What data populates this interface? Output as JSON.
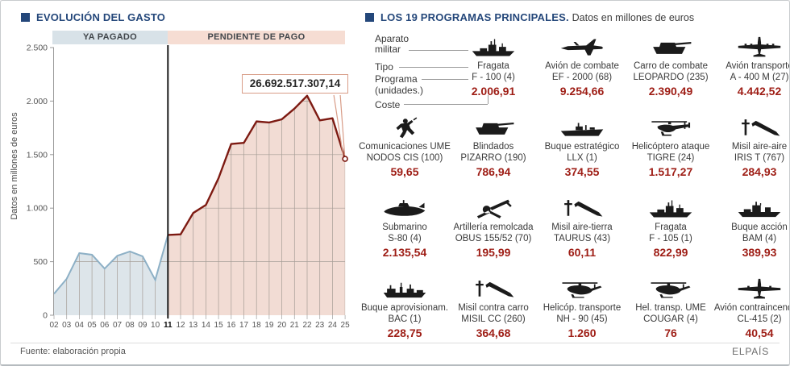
{
  "left_panel": {
    "title": "EVOLUCIÓN DEL GASTO",
    "bands": {
      "paid": "YA PAGADO",
      "pending": "PENDIENTE DE PAGO"
    },
    "y_axis_title": "Datos en millones de euros",
    "callout_value": "26.692.517.307,14"
  },
  "chart_data": {
    "type": "area",
    "title": "Evolución del gasto",
    "ylabel": "Datos en millones de euros",
    "ylim": [
      0,
      2500
    ],
    "yticks": [
      0,
      500,
      1000,
      1500,
      2000,
      2500
    ],
    "ytick_labels": [
      "0",
      "500",
      "1.000",
      "1.500",
      "2.000",
      "2.500"
    ],
    "x": [
      "02",
      "03",
      "04",
      "05",
      "06",
      "07",
      "08",
      "09",
      "10",
      "11",
      "12",
      "13",
      "14",
      "15",
      "16",
      "17",
      "18",
      "19",
      "20",
      "21",
      "22",
      "23",
      "24",
      "25"
    ],
    "bold_x_label": "11",
    "grid": true,
    "series": [
      {
        "name": "YA PAGADO",
        "x": [
          "02",
          "03",
          "04",
          "05",
          "06",
          "07",
          "08",
          "09",
          "10",
          "11"
        ],
        "values": [
          200,
          340,
          580,
          565,
          435,
          555,
          595,
          550,
          330,
          750
        ],
        "line_color": "#8db0c6",
        "fill_color": "#dde5ea"
      },
      {
        "name": "PENDIENTE DE PAGO",
        "x": [
          "11",
          "12",
          "13",
          "14",
          "15",
          "16",
          "17",
          "18",
          "19",
          "20",
          "21",
          "22",
          "23",
          "24",
          "25"
        ],
        "values": [
          750,
          755,
          955,
          1030,
          1280,
          1600,
          1610,
          1810,
          1800,
          1830,
          1930,
          2050,
          1820,
          1840,
          1460
        ],
        "line_color": "#7d1a12",
        "fill_color": "#f2dcd4"
      }
    ],
    "annotation": {
      "text": "26.692.517.307,14",
      "points_to_x": "25"
    }
  },
  "right_panel": {
    "title": "LOS 19 PROGRAMAS PRINCIPALES.",
    "subtitle": "Datos en millones de euros",
    "legend": {
      "aparato_line1": "Aparato",
      "aparato_line2": "militar",
      "tipo": "Tipo",
      "programa": "Programa",
      "unidades": "(unidades.)",
      "coste": "Coste"
    },
    "programs": [
      {
        "type": "Fragata",
        "name": "F - 100 (4)",
        "cost": "2.006,91",
        "icon": "frigate-icon"
      },
      {
        "type": "Avión de combate",
        "name": "EF - 2000 (68)",
        "cost": "9.254,66",
        "icon": "fighter-jet-icon"
      },
      {
        "type": "Carro de combate",
        "name": "LEOPARDO (235)",
        "cost": "2.390,49",
        "icon": "tank-icon"
      },
      {
        "type": "Avión transporte",
        "name": "A - 400 M (27)",
        "cost": "4.442,52",
        "icon": "transport-plane-icon"
      },
      {
        "type": "Comunicaciones UME",
        "name": "NODOS CIS (100)",
        "cost": "59,65",
        "icon": "soldier-radio-icon"
      },
      {
        "type": "Blindados",
        "name": "PIZARRO (190)",
        "cost": "786,94",
        "icon": "tank-icon"
      },
      {
        "type": "Buque estratégico",
        "name": "LLX (1)",
        "cost": "374,55",
        "icon": "strategic-ship-icon"
      },
      {
        "type": "Helicóptero ataque",
        "name": "TIGRE (24)",
        "cost": "1.517,27",
        "icon": "attack-helicopter-icon"
      },
      {
        "type": "Misil aire-aire",
        "name": "IRIS T (767)",
        "cost": "284,93",
        "icon": "missile-icon"
      },
      {
        "type": "Submarino",
        "name": "S-80 (4)",
        "cost": "2.135,54",
        "icon": "submarine-icon"
      },
      {
        "type": "Artillería remolcada",
        "name": "OBUS 155/52 (70)",
        "cost": "195,99",
        "icon": "towed-artillery-icon"
      },
      {
        "type": "Misil aire-tierra",
        "name": "TAURUS (43)",
        "cost": "60,11",
        "icon": "missile-icon"
      },
      {
        "type": "Fragata",
        "name": "F - 105 (1)",
        "cost": "822,99",
        "icon": "frigate-icon"
      },
      {
        "type": "Buque acción",
        "name": "BAM (4)",
        "cost": "389,93",
        "icon": "action-ship-icon"
      },
      {
        "type": "Buque aprovisionam.",
        "name": "BAC (1)",
        "cost": "228,75",
        "icon": "supply-ship-icon"
      },
      {
        "type": "Misil contra carro",
        "name": "MISIL CC (260)",
        "cost": "364,68",
        "icon": "missile-icon"
      },
      {
        "type": "Helicóp. transporte",
        "name": "NH - 90 (45)",
        "cost": "1.260",
        "icon": "transport-helicopter-icon"
      },
      {
        "type": "Hel. transp. UME",
        "name": "COUGAR (4)",
        "cost": "76",
        "icon": "transport-helicopter-icon"
      },
      {
        "type": "Avión contraincendios",
        "name": "CL-415 (2)",
        "cost": "40,54",
        "icon": "firefighting-plane-icon"
      }
    ]
  },
  "footer": {
    "source": "Fuente: elaboración propia",
    "brand": "ELPAÍS"
  },
  "colors": {
    "accent_blue": "#24477a",
    "cost_red": "#9e1d15",
    "paid_fill": "#dde5ea",
    "paid_line": "#8db0c6",
    "pending_fill": "#f2dcd4",
    "pending_line": "#7d1a12",
    "band_paid_bg": "#d8e2e8",
    "band_pending_bg": "#f6ddd3",
    "callout_border": "#d89c87",
    "icon_black": "#1b1b1b"
  }
}
